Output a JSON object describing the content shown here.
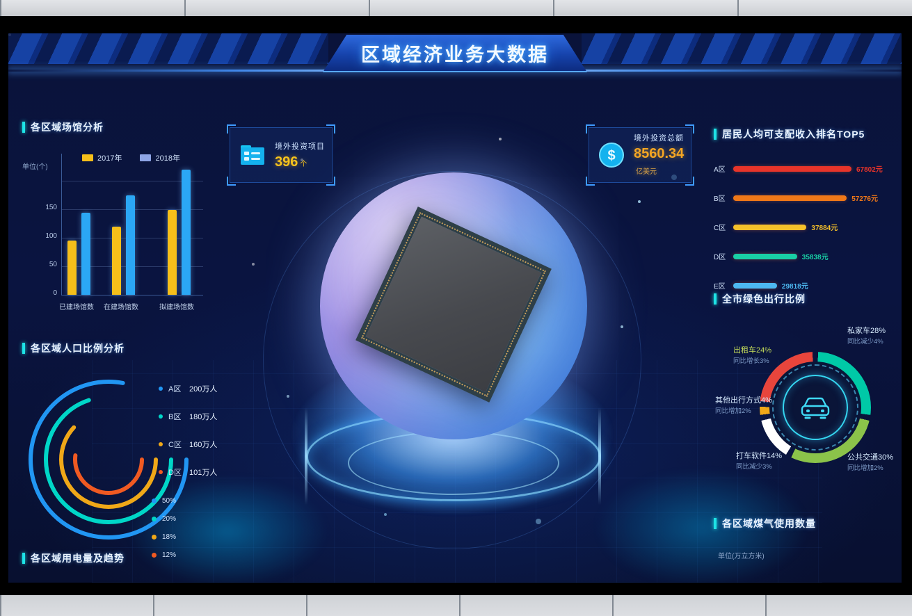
{
  "header": {
    "title": "区域经济业务大数据"
  },
  "cards": {
    "projects": {
      "label": "境外投资项目",
      "value": "396",
      "unit": "个"
    },
    "investment": {
      "label": "境外投资总额",
      "value": "8560.34",
      "unit": "亿美元"
    }
  },
  "panels": {
    "electricity": {
      "header": "各区域用电量及趋势"
    },
    "gas": {
      "header": "各区域煤气使用数量",
      "unit": "单位(万立方米)"
    }
  },
  "chart_data": [
    {
      "id": "venue-bars",
      "type": "bar",
      "title": "各区域场馆分析",
      "unit": "单位(个)",
      "categories": [
        "已建场馆数",
        "在建场馆数",
        "拟建场馆数"
      ],
      "series": [
        {
          "name": "2017年",
          "color": "#f6bf1a",
          "swatch": "#f6bf1a",
          "values": [
            95,
            120,
            150
          ]
        },
        {
          "name": "2018年",
          "color": "#2ba7f5",
          "swatch": "#8ea5e6",
          "values": [
            145,
            175,
            220
          ]
        }
      ],
      "y_ticks": [
        "150",
        "100",
        "50",
        "0"
      ],
      "ylim": [
        0,
        250
      ],
      "legend_position": "top"
    },
    {
      "id": "population-arcs",
      "type": "pie",
      "title": "各区域人口比例分析",
      "items": [
        {
          "label": "A区",
          "value": "200万人",
          "pct": 50,
          "color": "#2196f3",
          "arc": 78
        },
        {
          "label": "B区",
          "value": "180万人",
          "pct": 20,
          "color": "#00d6c8",
          "arc": 70
        },
        {
          "label": "C区",
          "value": "160万人",
          "pct": 18,
          "color": "#f0a818",
          "arc": 62
        },
        {
          "label": "D区",
          "value": "101万人",
          "pct": 12,
          "color": "#f05a22",
          "arc": 52
        }
      ],
      "legend": [
        "50%",
        "20%",
        "18%",
        "12%"
      ]
    },
    {
      "id": "income-top5",
      "type": "bar",
      "title": "居民人均可支配收入排名TOP5",
      "rows": [
        {
          "label": "A区",
          "value": "67802元",
          "color": "#e8342a",
          "pct": 100
        },
        {
          "label": "B区",
          "value": "57276元",
          "color": "#f07818",
          "pct": 96
        },
        {
          "label": "C区",
          "value": "37884元",
          "color": "#f5c02a",
          "pct": 62
        },
        {
          "label": "D区",
          "value": "35838元",
          "color": "#19cfa5",
          "pct": 54
        },
        {
          "label": "E区",
          "value": "29818元",
          "color": "#4db8f0",
          "pct": 37
        }
      ]
    },
    {
      "id": "travel-donut",
      "type": "pie",
      "title": "全市绿色出行比例",
      "segments": [
        {
          "label": "私家车",
          "pct": 28,
          "pct_label": "28%",
          "color": "#00c9a7",
          "note": "同比减少4%"
        },
        {
          "label": "公共交通",
          "pct": 30,
          "pct_label": "30%",
          "color": "#8bc34a",
          "note": "同比增加2%"
        },
        {
          "label": "打车软件",
          "pct": 14,
          "pct_label": "14%",
          "color": "#ffffff",
          "note": "同比减少3%"
        },
        {
          "label": "其他出行方式",
          "pct": 4,
          "pct_label": "4%",
          "color": "#f0a818",
          "note": "同比增加2%"
        },
        {
          "label": "出租车",
          "pct": 24,
          "pct_label": "24%",
          "color": "#e8453c",
          "note": "同比增长3%"
        }
      ]
    }
  ]
}
